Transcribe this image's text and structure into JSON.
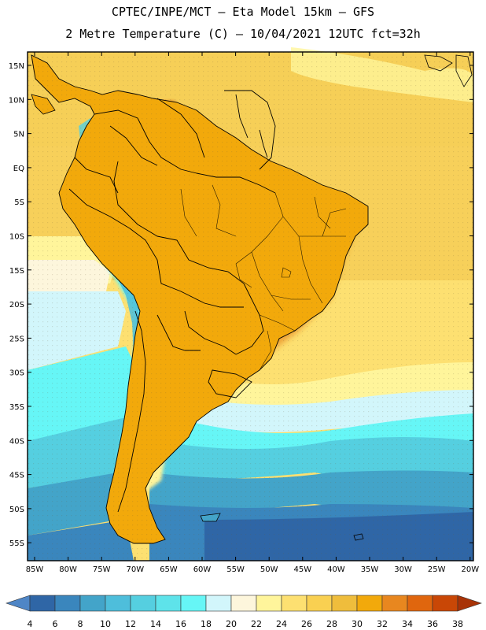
{
  "title_line1": "CPTEC/INPE/MCT  –  Eta Model 15km  –  GFS",
  "title_line2": "2 Metre Temperature (C) – 10/04/2021 12UTC fct=32h",
  "lat_labels": [
    "15N",
    "10N",
    "5N",
    "EQ",
    "5S",
    "10S",
    "15S",
    "20S",
    "25S",
    "30S",
    "35S",
    "40S",
    "45S",
    "50S",
    "55S"
  ],
  "lon_labels": [
    "85W",
    "80W",
    "75W",
    "70W",
    "65W",
    "60W",
    "55W",
    "50W",
    "45W",
    "40W",
    "35W",
    "30W",
    "25W",
    "20W"
  ],
  "colorbar": {
    "labels": [
      "4",
      "6",
      "8",
      "10",
      "12",
      "14",
      "16",
      "18",
      "20",
      "22",
      "24",
      "26",
      "28",
      "30",
      "32",
      "34",
      "36",
      "38"
    ],
    "colors": [
      "#4f86c6",
      "#2f66a6",
      "#3a86bd",
      "#43a4c9",
      "#4ebedb",
      "#55cfe0",
      "#5ee3ea",
      "#66f6f6",
      "#d2f6fb",
      "#fdf6dc",
      "#fff59b",
      "#fde071",
      "#f9d051",
      "#efbd3c",
      "#f2a90b",
      "#e8871f",
      "#e0660e",
      "#c94706",
      "#a83307"
    ]
  }
}
